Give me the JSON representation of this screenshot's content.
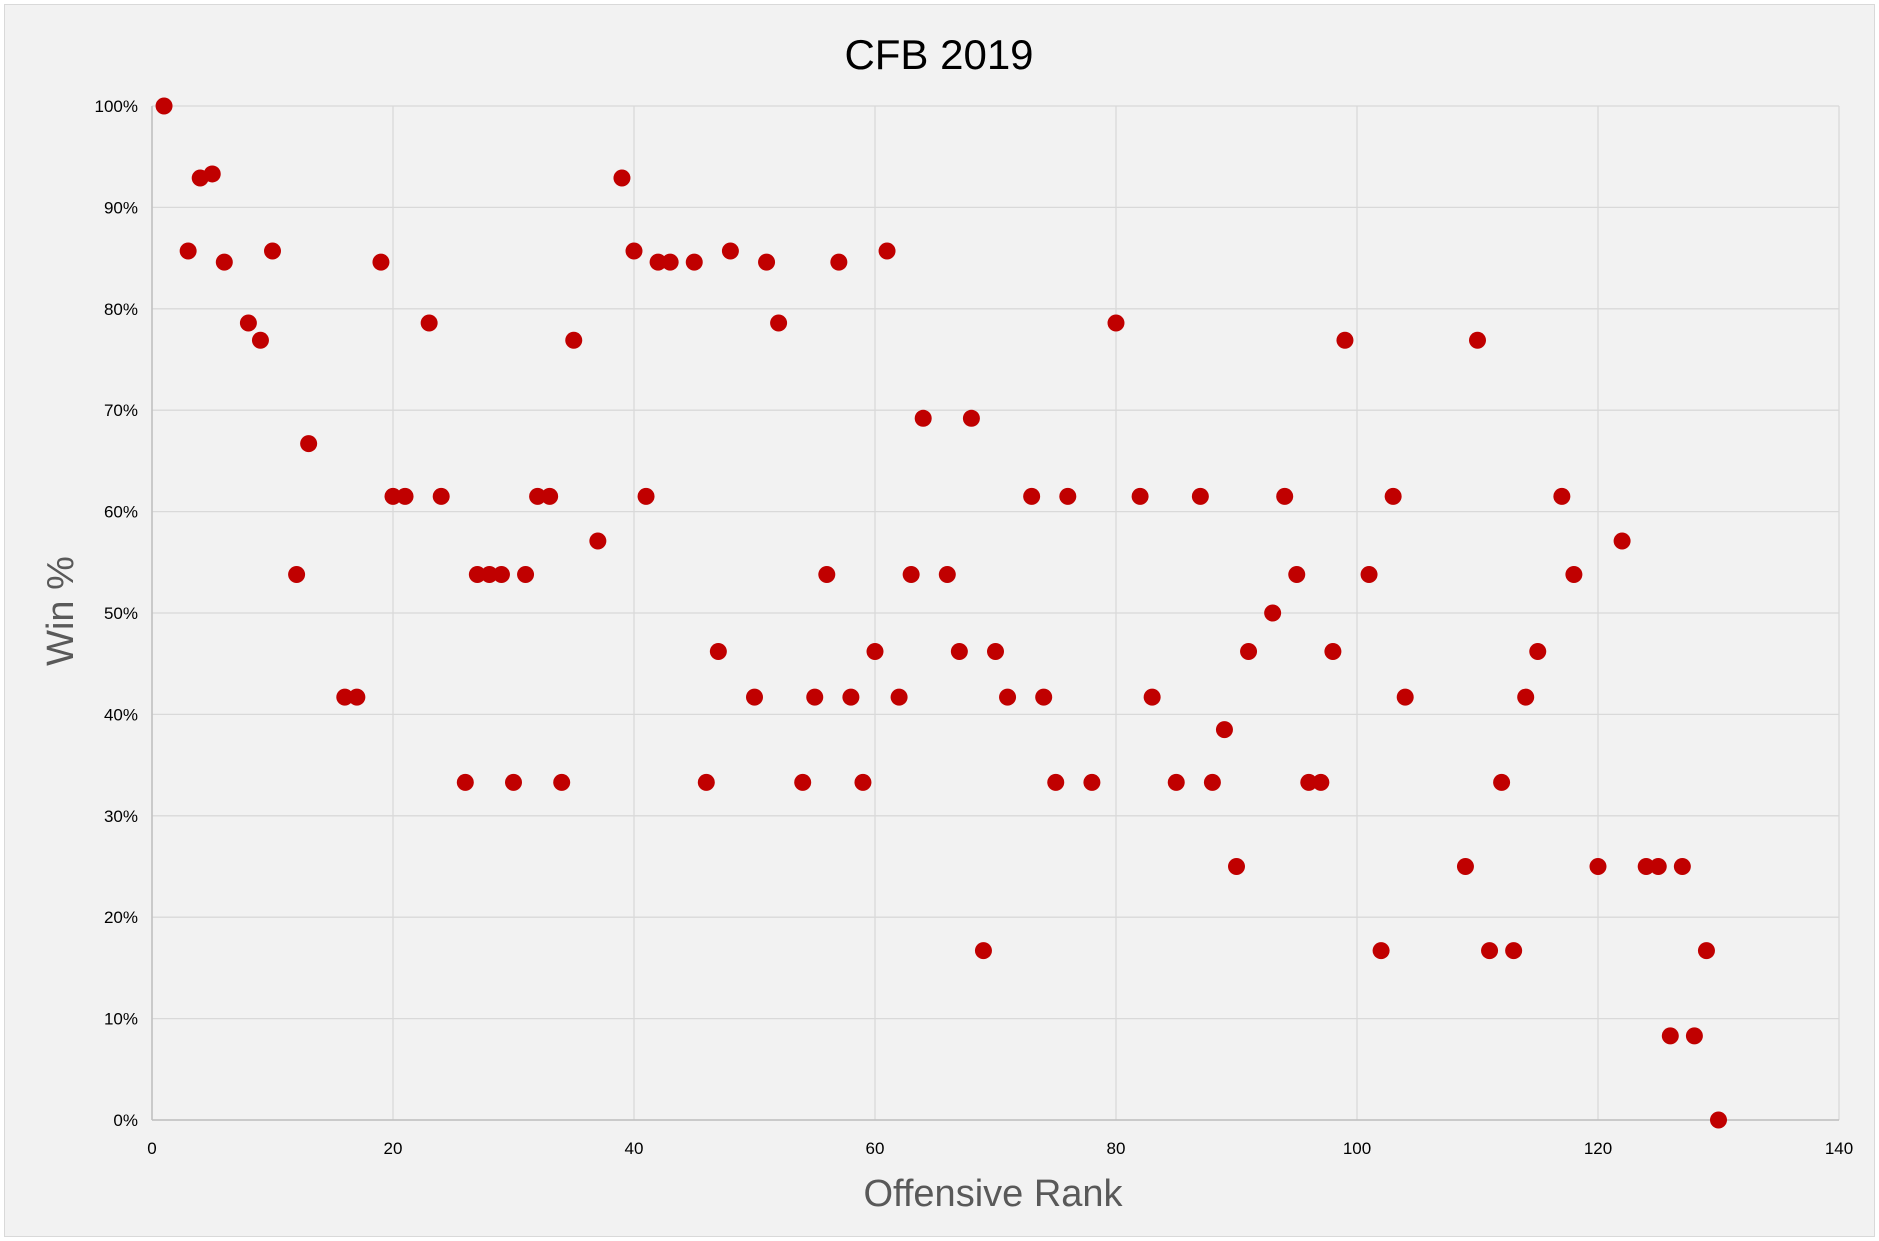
{
  "chart_data": {
    "type": "scatter",
    "title": "CFB 2019",
    "xlabel": "Offensive Rank",
    "ylabel": "Win %",
    "xlim": [
      0,
      140
    ],
    "ylim": [
      0,
      1
    ],
    "x_ticks": [
      "0",
      "20",
      "40",
      "60",
      "80",
      "100",
      "120",
      "140"
    ],
    "y_ticks": [
      "0%",
      "10%",
      "20%",
      "30%",
      "40%",
      "50%",
      "60%",
      "70%",
      "80%",
      "90%",
      "100%"
    ],
    "grid": true,
    "legend": "none",
    "point_color": "#c00000",
    "points": [
      [
        1,
        1.0
      ],
      [
        3,
        0.857
      ],
      [
        4,
        0.929
      ],
      [
        5,
        0.933
      ],
      [
        6,
        0.846
      ],
      [
        8,
        0.786
      ],
      [
        9,
        0.769
      ],
      [
        10,
        0.857
      ],
      [
        12,
        0.538
      ],
      [
        13,
        0.667
      ],
      [
        16,
        0.417
      ],
      [
        17,
        0.417
      ],
      [
        19,
        0.846
      ],
      [
        20,
        0.615
      ],
      [
        21,
        0.615
      ],
      [
        23,
        0.786
      ],
      [
        24,
        0.615
      ],
      [
        26,
        0.333
      ],
      [
        27,
        0.538
      ],
      [
        28,
        0.538
      ],
      [
        29,
        0.538
      ],
      [
        30,
        0.333
      ],
      [
        31,
        0.538
      ],
      [
        32,
        0.615
      ],
      [
        33,
        0.615
      ],
      [
        34,
        0.333
      ],
      [
        35,
        0.769
      ],
      [
        37,
        0.571
      ],
      [
        39,
        0.929
      ],
      [
        40,
        0.857
      ],
      [
        41,
        0.615
      ],
      [
        42,
        0.846
      ],
      [
        43,
        0.846
      ],
      [
        45,
        0.846
      ],
      [
        46,
        0.333
      ],
      [
        47,
        0.462
      ],
      [
        48,
        0.857
      ],
      [
        50,
        0.417
      ],
      [
        51,
        0.846
      ],
      [
        52,
        0.786
      ],
      [
        54,
        0.333
      ],
      [
        55,
        0.417
      ],
      [
        56,
        0.538
      ],
      [
        57,
        0.846
      ],
      [
        58,
        0.417
      ],
      [
        59,
        0.333
      ],
      [
        60,
        0.462
      ],
      [
        61,
        0.857
      ],
      [
        62,
        0.417
      ],
      [
        63,
        0.538
      ],
      [
        64,
        0.692
      ],
      [
        66,
        0.538
      ],
      [
        67,
        0.462
      ],
      [
        68,
        0.692
      ],
      [
        69,
        0.167
      ],
      [
        70,
        0.462
      ],
      [
        71,
        0.417
      ],
      [
        73,
        0.615
      ],
      [
        74,
        0.417
      ],
      [
        75,
        0.333
      ],
      [
        76,
        0.615
      ],
      [
        78,
        0.333
      ],
      [
        80,
        0.786
      ],
      [
        82,
        0.615
      ],
      [
        83,
        0.417
      ],
      [
        85,
        0.333
      ],
      [
        87,
        0.615
      ],
      [
        88,
        0.333
      ],
      [
        89,
        0.385
      ],
      [
        90,
        0.25
      ],
      [
        91,
        0.462
      ],
      [
        93,
        0.5
      ],
      [
        94,
        0.615
      ],
      [
        95,
        0.538
      ],
      [
        96,
        0.333
      ],
      [
        97,
        0.333
      ],
      [
        98,
        0.462
      ],
      [
        99,
        0.769
      ],
      [
        101,
        0.538
      ],
      [
        102,
        0.167
      ],
      [
        103,
        0.615
      ],
      [
        104,
        0.417
      ],
      [
        109,
        0.25
      ],
      [
        110,
        0.769
      ],
      [
        111,
        0.167
      ],
      [
        112,
        0.333
      ],
      [
        113,
        0.167
      ],
      [
        114,
        0.417
      ],
      [
        115,
        0.462
      ],
      [
        117,
        0.615
      ],
      [
        118,
        0.538
      ],
      [
        120,
        0.25
      ],
      [
        122,
        0.571
      ],
      [
        124,
        0.25
      ],
      [
        125,
        0.25
      ],
      [
        126,
        0.083
      ],
      [
        127,
        0.25
      ],
      [
        128,
        0.083
      ],
      [
        129,
        0.167
      ],
      [
        130,
        0.0
      ]
    ]
  }
}
